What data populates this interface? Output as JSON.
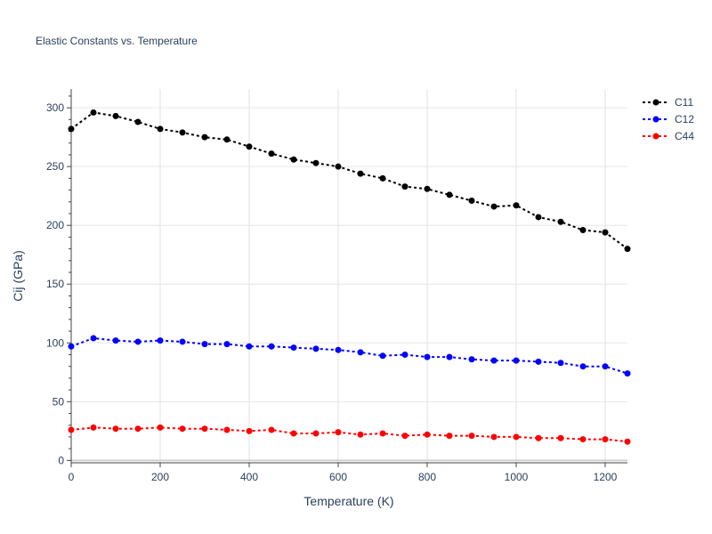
{
  "chart_data": {
    "type": "line",
    "title": "Elastic Constants vs. Temperature",
    "xlabel": "Temperature (K)",
    "ylabel": "Cij (GPa)",
    "xlim": [
      0,
      1250
    ],
    "ylim": [
      -2,
      316
    ],
    "x_ticks": [
      0,
      200,
      400,
      600,
      800,
      1000,
      1200
    ],
    "y_ticks": [
      0,
      50,
      100,
      150,
      200,
      250,
      300
    ],
    "grid": true,
    "legend_position": "top-right",
    "x": [
      0,
      50,
      100,
      150,
      200,
      250,
      300,
      350,
      400,
      450,
      500,
      550,
      600,
      650,
      700,
      750,
      800,
      850,
      900,
      950,
      1000,
      1050,
      1100,
      1150,
      1200,
      1250
    ],
    "series": [
      {
        "name": "C11",
        "color": "#000000",
        "values": [
          282,
          296,
          293,
          288,
          282,
          279,
          275,
          273,
          267,
          261,
          256,
          253,
          250,
          244,
          240,
          233,
          231,
          226,
          221,
          216,
          217,
          207,
          203,
          196,
          194,
          180
        ]
      },
      {
        "name": "C12",
        "color": "#0000ff",
        "values": [
          97,
          104,
          102,
          101,
          102,
          101,
          99,
          99,
          97,
          97,
          96,
          95,
          94,
          92,
          89,
          90,
          88,
          88,
          86,
          85,
          85,
          84,
          83,
          80,
          80,
          74
        ]
      },
      {
        "name": "C44",
        "color": "#ff0000",
        "values": [
          26,
          28,
          27,
          27,
          28,
          27,
          27,
          26,
          25,
          26,
          23,
          23,
          24,
          22,
          23,
          21,
          22,
          21,
          21,
          20,
          20,
          19,
          19,
          18,
          18,
          16
        ]
      }
    ]
  }
}
